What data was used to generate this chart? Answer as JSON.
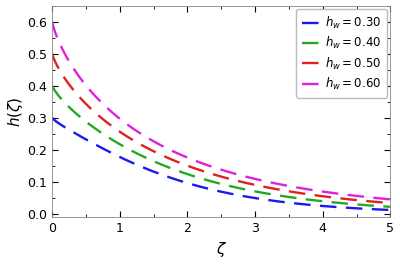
{
  "title": "",
  "xlabel": "$\\zeta$",
  "ylabel": "$h(\\zeta)$",
  "xlim": [
    0,
    5
  ],
  "ylim": [
    -0.01,
    0.65
  ],
  "xticks": [
    0,
    1,
    2,
    3,
    4,
    5
  ],
  "yticks": [
    0.0,
    0.1,
    0.2,
    0.3,
    0.4,
    0.5,
    0.6
  ],
  "curve_params": [
    {
      "hw": 0.3,
      "A": 0.06,
      "b": 1.3,
      "alpha": 0.85,
      "color": "#1a1aee",
      "label": "$h_w = 0.30$"
    },
    {
      "hw": 0.4,
      "A": 0.065,
      "b": 1.5,
      "alpha": 0.9,
      "color": "#22aa22",
      "label": "$h_w = 0.40$"
    },
    {
      "hw": 0.5,
      "A": 0.065,
      "b": 1.7,
      "alpha": 0.95,
      "color": "#dd2222",
      "label": "$h_w = 0.50$"
    },
    {
      "hw": 0.6,
      "A": 0.06,
      "b": 2.0,
      "alpha": 1.0,
      "color": "#dd22dd",
      "label": "$h_w = 0.60$"
    }
  ],
  "background_color": "#ffffff",
  "legend_fontsize": 8.5,
  "axis_fontsize": 11,
  "tick_fontsize": 9,
  "linewidth": 1.7,
  "dash_on": 7,
  "dash_off": 4
}
